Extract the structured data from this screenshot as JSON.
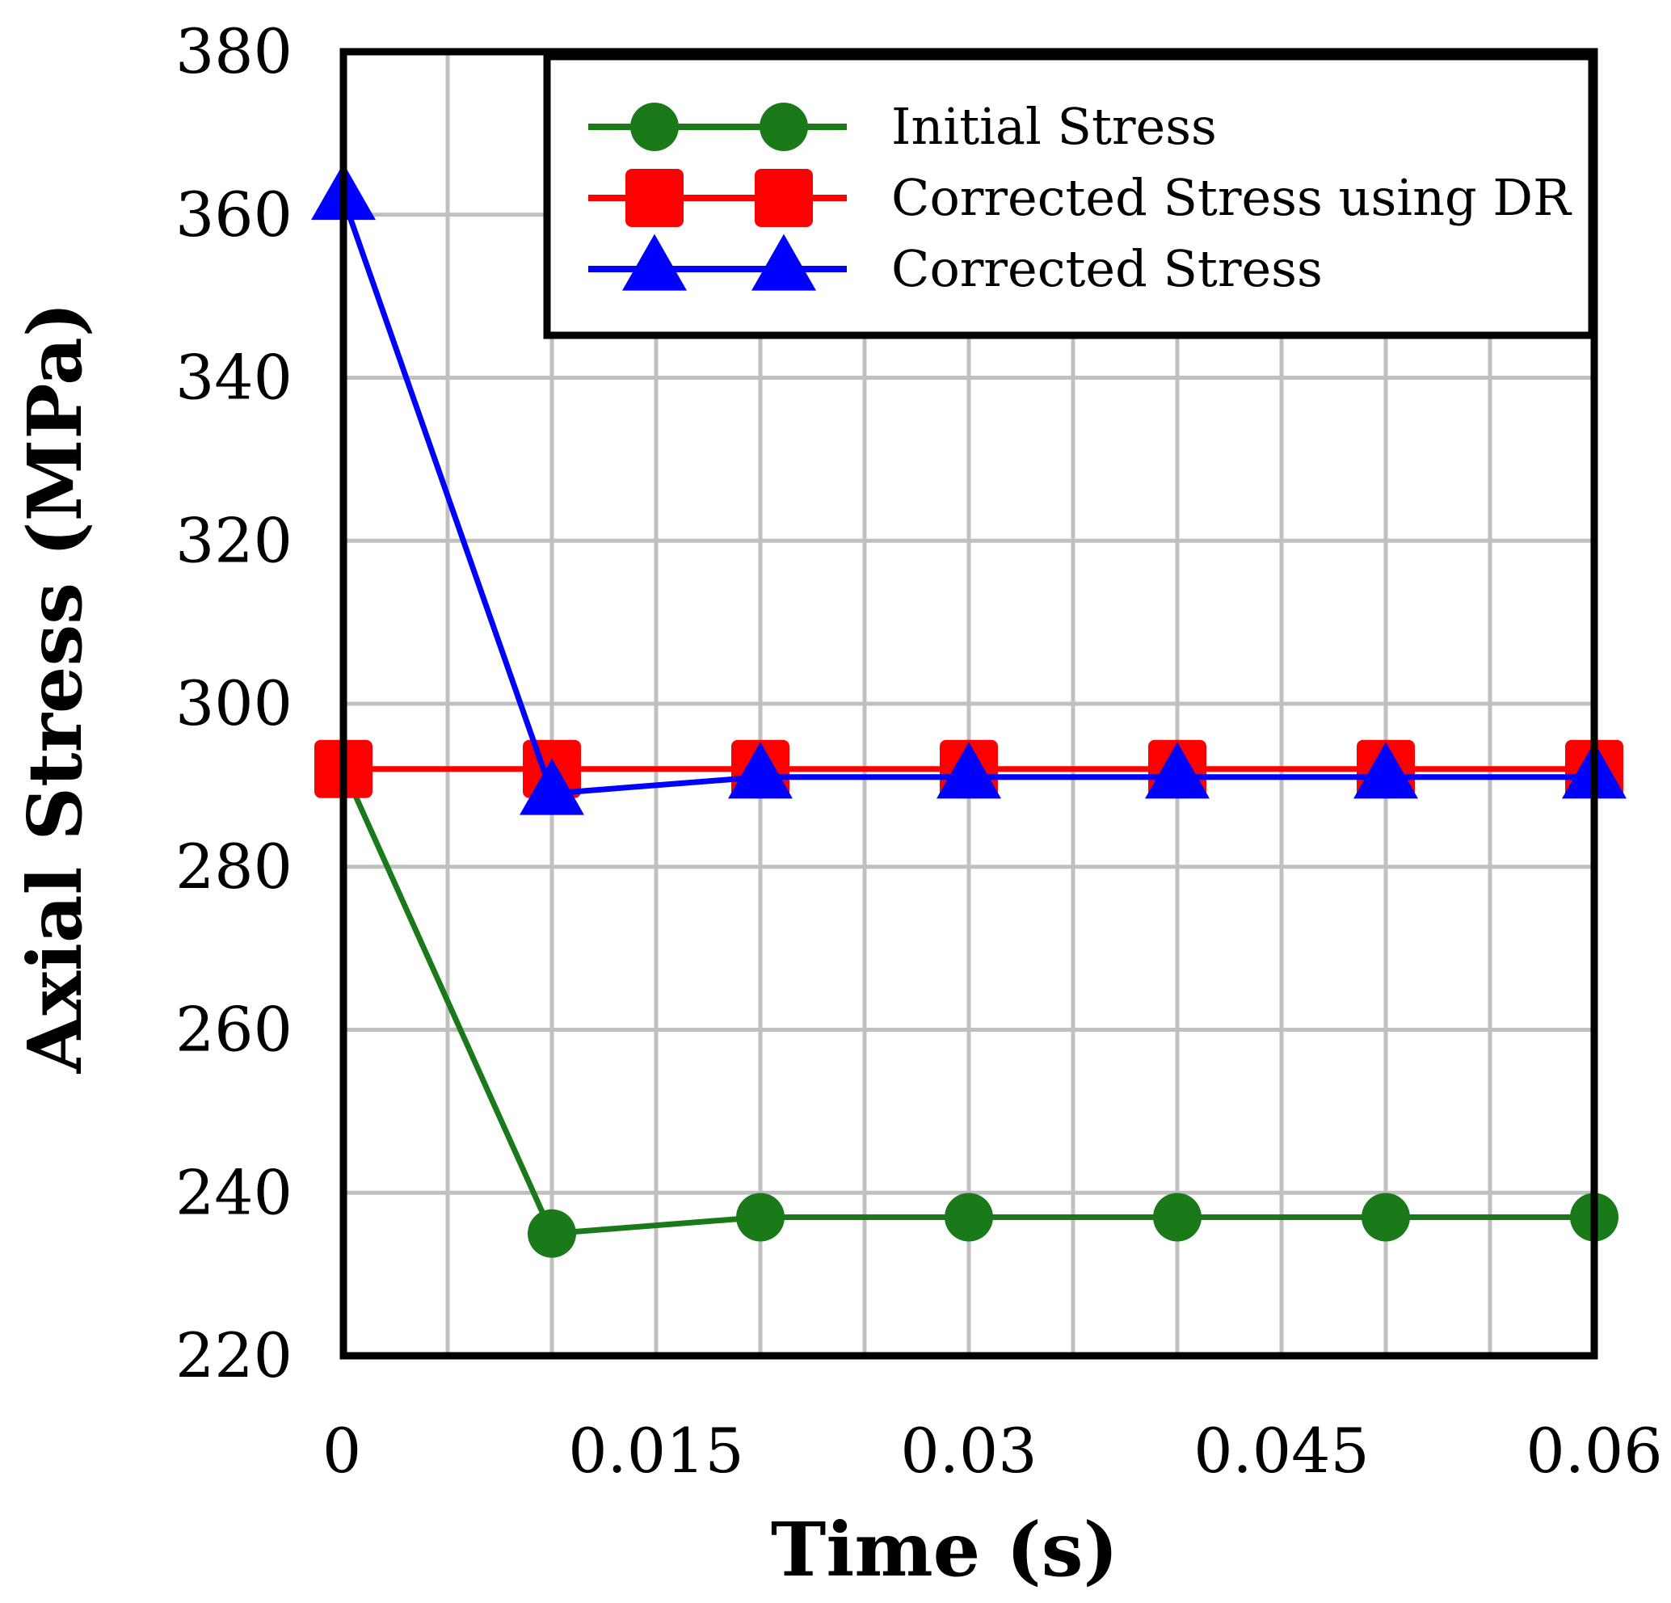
{
  "chart_data": {
    "type": "line",
    "title": "",
    "xlabel": "Time (s)",
    "ylabel": "Axial Stress (MPa)",
    "xlim": [
      0,
      0.06
    ],
    "ylim": [
      220,
      380
    ],
    "x_ticks": [
      0,
      0.015,
      0.03,
      0.045,
      0.06
    ],
    "x_tick_labels": [
      "0",
      "0.015",
      "0.03",
      "0.045",
      "0.06"
    ],
    "y_ticks": [
      220,
      240,
      260,
      280,
      300,
      320,
      340,
      360,
      380
    ],
    "y_tick_labels": [
      "220",
      "240",
      "260",
      "280",
      "300",
      "320",
      "340",
      "360",
      "380"
    ],
    "x_minor_step": 0.005,
    "grid": true,
    "legend_position": "top-right",
    "x": [
      0,
      0.01,
      0.02,
      0.03,
      0.04,
      0.05,
      0.06
    ],
    "series": [
      {
        "name": "Initial Stress",
        "color": "#1a7a1a",
        "marker": "circle",
        "values": [
          292,
          235,
          237,
          237,
          237,
          237,
          237
        ]
      },
      {
        "name": "Corrected Stress using DR",
        "color": "#ff0000",
        "marker": "square",
        "values": [
          292,
          292,
          292,
          292,
          292,
          292,
          292
        ]
      },
      {
        "name": "Corrected Stress",
        "color": "#0000ff",
        "marker": "triangle",
        "values": [
          362,
          289,
          291,
          291,
          291,
          291,
          291
        ]
      }
    ]
  }
}
